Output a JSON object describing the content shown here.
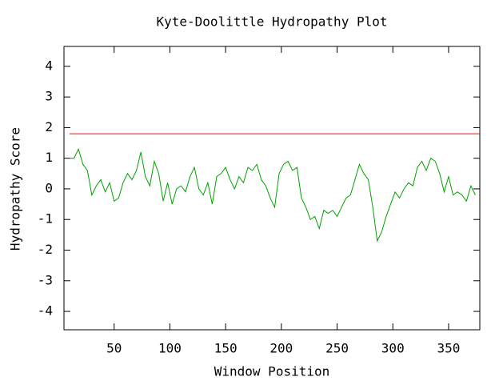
{
  "chart_data": {
    "type": "line",
    "title": "Kyte-Doolittle Hydropathy Plot",
    "x_label": "Window Position",
    "y_label": "Hydropathy Score",
    "x": [
      10,
      14,
      18,
      22,
      26,
      30,
      34,
      38,
      42,
      46,
      50,
      54,
      58,
      62,
      66,
      70,
      74,
      78,
      82,
      86,
      90,
      94,
      98,
      102,
      106,
      110,
      114,
      118,
      122,
      126,
      130,
      134,
      138,
      142,
      146,
      150,
      154,
      158,
      162,
      166,
      170,
      174,
      178,
      182,
      186,
      190,
      194,
      198,
      202,
      206,
      210,
      214,
      218,
      222,
      226,
      230,
      234,
      238,
      242,
      246,
      250,
      254,
      258,
      262,
      266,
      270,
      274,
      278,
      282,
      286,
      290,
      294,
      298,
      302,
      306,
      310,
      314,
      318,
      322,
      326,
      330,
      334,
      338,
      342,
      346,
      350,
      354,
      358,
      362,
      366,
      370,
      374
    ],
    "series": [
      {
        "color": "#00a000",
        "values": [
          1.0,
          1.0,
          1.3,
          0.8,
          0.6,
          -0.2,
          0.1,
          0.3,
          -0.1,
          0.2,
          -0.4,
          -0.3,
          0.2,
          0.5,
          0.3,
          0.6,
          1.2,
          0.4,
          0.1,
          0.9,
          0.5,
          -0.4,
          0.2,
          -0.5,
          0.0,
          0.1,
          -0.1,
          0.4,
          0.7,
          0.0,
          -0.2,
          0.2,
          -0.5,
          0.4,
          0.5,
          0.7,
          0.3,
          0.0,
          0.4,
          0.2,
          0.7,
          0.6,
          0.8,
          0.3,
          0.1,
          -0.3,
          -0.6,
          0.5,
          0.8,
          0.9,
          0.6,
          0.7,
          -0.3,
          -0.6,
          -1.0,
          -0.9,
          -1.3,
          -0.7,
          -0.8,
          -0.7,
          -0.9,
          -0.6,
          -0.3,
          -0.2,
          0.3,
          0.8,
          0.5,
          0.3,
          -0.6,
          -1.7,
          -1.4,
          -0.9,
          -0.5,
          -0.1,
          -0.3,
          0.0,
          0.2,
          0.1,
          0.7,
          0.9,
          0.6,
          1.0,
          0.9,
          0.5,
          -0.1,
          0.4,
          -0.2,
          -0.1,
          -0.2,
          -0.4,
          0.1,
          -0.2
        ]
      }
    ],
    "reference_lines": [
      {
        "value": 1.8,
        "color": "#ff0000"
      }
    ],
    "xlim": [
      5,
      378
    ],
    "ylim": [
      -4.6,
      4.65
    ],
    "xticks": [
      50,
      100,
      150,
      200,
      250,
      300,
      350
    ],
    "yticks": [
      -4,
      -3,
      -2,
      -1,
      0,
      1,
      2,
      3,
      4
    ]
  }
}
